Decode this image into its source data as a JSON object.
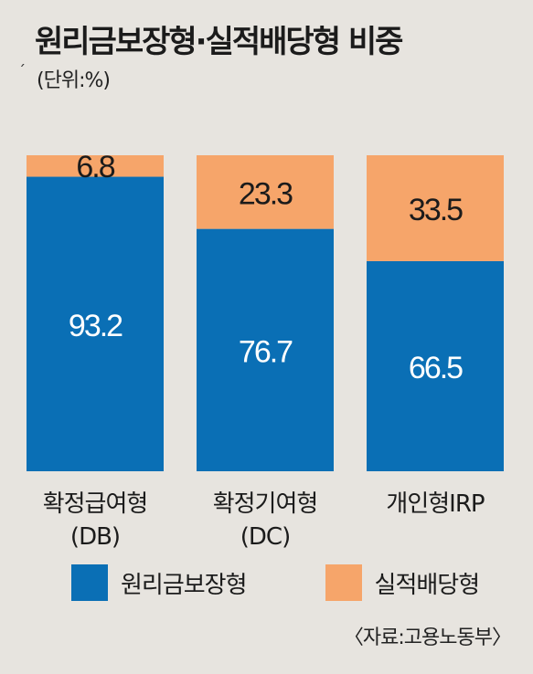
{
  "title": "원리금보장형·실적배당형 비중",
  "unit": "(단위:%)",
  "source": "〈자료:고용노동부〉",
  "colors": {
    "guaranteed": "#0a6fb5",
    "performance": "#f6a56a",
    "background": "#e7e4df"
  },
  "chart_data": {
    "type": "bar",
    "stacked": true,
    "title": "원리금보장형·실적배당형 비중",
    "unit": "(단위:%)",
    "categories": [
      [
        "확정급여형",
        "(DB)"
      ],
      [
        "확정기여형",
        "(DC)"
      ],
      [
        "개인형IRP"
      ]
    ],
    "series": [
      {
        "name": "원리금보장형",
        "values": [
          93.2,
          76.7,
          66.5
        ],
        "color": "#0a6fb5",
        "label_color": "#ffffff"
      },
      {
        "name": "실적배당형",
        "values": [
          6.8,
          23.3,
          33.5
        ],
        "color": "#f6a56a",
        "label_color": "#1b1b1b"
      }
    ],
    "ylim": [
      0,
      100
    ],
    "grid": false,
    "legend": "bottom"
  }
}
